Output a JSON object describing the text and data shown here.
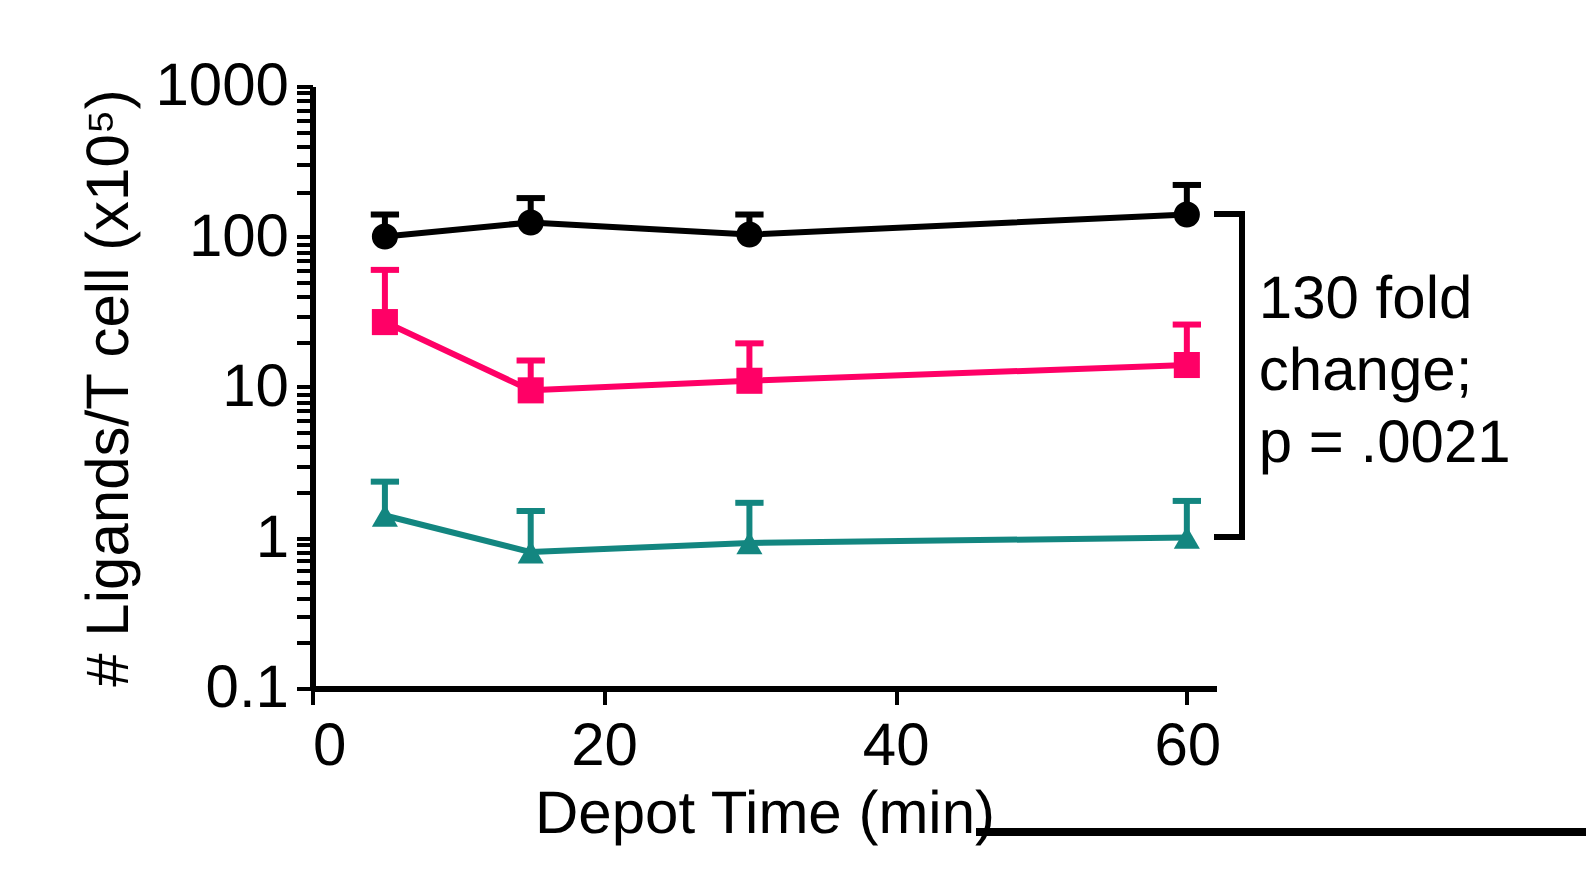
{
  "chart_data": {
    "type": "line",
    "xlabel": "Depot Time (min)",
    "ylabel": "# Ligands/T cell (x10⁵)",
    "log": "y",
    "grid": false,
    "legend": false,
    "x": [
      5,
      15,
      30,
      60
    ],
    "series": [
      {
        "color": "#000000",
        "marker": "circle",
        "values": [
          100,
          124,
          103,
          140
        ],
        "errors": [
          [
            100,
            140
          ],
          [
            124,
            180
          ],
          [
            103,
            140
          ],
          [
            140,
            220
          ]
        ]
      },
      {
        "color": "#ff0066",
        "marker": "square",
        "values": [
          27,
          9.5,
          11,
          14
        ],
        "errors": [
          [
            27,
            60
          ],
          [
            9.5,
            15
          ],
          [
            11,
            19.5
          ],
          [
            14,
            26
          ]
        ]
      },
      {
        "color": "#138680",
        "marker": "triangle",
        "values": [
          1.4,
          0.8,
          0.92,
          1.0
        ],
        "errors": [
          [
            1.4,
            2.35
          ],
          [
            0.8,
            1.5
          ],
          [
            0.92,
            1.7
          ],
          [
            1.0,
            1.75
          ]
        ]
      }
    ],
    "xlim": [
      0,
      62
    ],
    "xticks": [
      0,
      20,
      40,
      60
    ],
    "ylim": [
      0.1,
      1000
    ],
    "yticks": [
      0.1,
      {
        "value": 0.2,
        "label": null
      },
      {
        "value": 0.3,
        "label": null
      },
      {
        "value": 0.4,
        "label": null
      },
      {
        "value": 0.5,
        "label": null
      },
      {
        "value": 0.6,
        "label": null
      },
      {
        "value": 0.7,
        "label": null
      },
      {
        "value": 0.8,
        "label": null
      },
      {
        "value": 0.9,
        "label": null
      },
      1,
      {
        "value": 2,
        "label": null
      },
      {
        "value": 3,
        "label": null
      },
      {
        "value": 4,
        "label": null
      },
      {
        "value": 5,
        "label": null
      },
      {
        "value": 6,
        "label": null
      },
      {
        "value": 7,
        "label": null
      },
      {
        "value": 8,
        "label": null
      },
      {
        "value": 9,
        "label": null
      },
      10,
      {
        "value": 20,
        "label": null
      },
      {
        "value": 30,
        "label": null
      },
      {
        "value": 40,
        "label": null
      },
      {
        "value": 50,
        "label": null
      },
      {
        "value": 60,
        "label": null
      },
      {
        "value": 70,
        "label": null
      },
      {
        "value": 80,
        "label": null
      },
      {
        "value": 90,
        "label": null
      },
      100,
      {
        "value": 200,
        "label": null
      },
      {
        "value": 300,
        "label": null
      },
      {
        "value": 400,
        "label": null
      },
      {
        "value": 500,
        "label": null
      },
      {
        "value": 600,
        "label": null
      },
      {
        "value": 700,
        "label": null
      },
      {
        "value": 800,
        "label": null
      },
      {
        "value": 900,
        "label": null
      },
      1000
    ],
    "annotations": [
      {
        "text": "130 fold change; p = .0021",
        "x": 60,
        "y": 140
      }
    ]
  }
}
